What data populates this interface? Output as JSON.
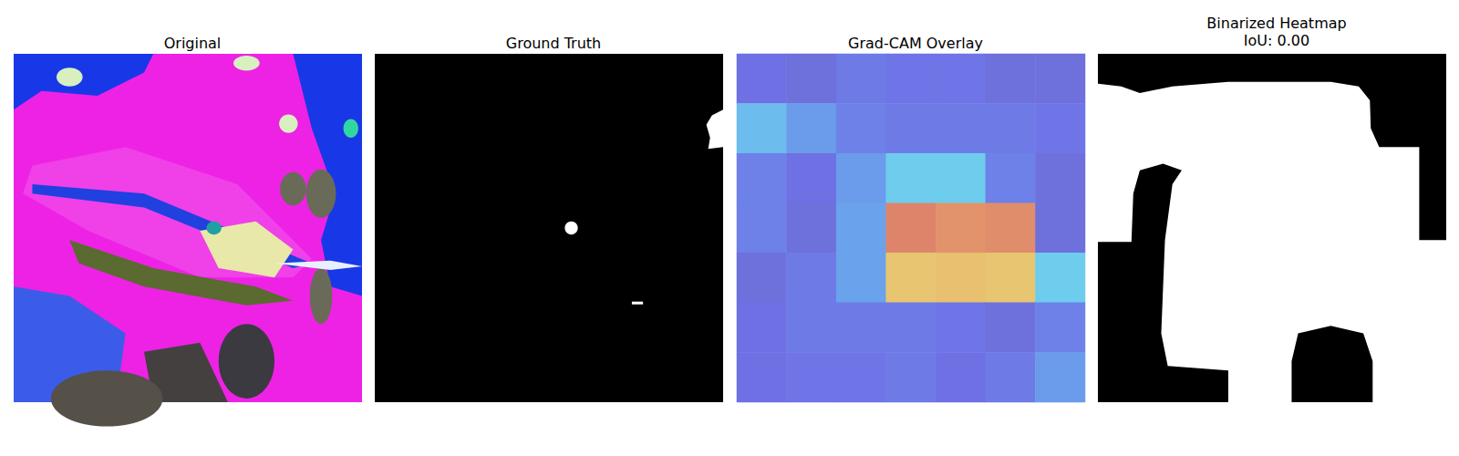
{
  "chart_data": [
    {
      "type": "image",
      "title": "Original",
      "tick_labels": false
    },
    {
      "type": "mask",
      "title": "Ground Truth",
      "tick_labels": false
    },
    {
      "type": "heatmap",
      "title": "Grad-CAM Overlay",
      "tick_labels": false,
      "range": [
        0,
        1
      ],
      "cells": [
        [
          0.15,
          0.12,
          0.2,
          0.18,
          0.18,
          0.12,
          0.12
        ],
        [
          0.4,
          0.3,
          0.22,
          0.2,
          0.2,
          0.2,
          0.18
        ],
        [
          0.22,
          0.15,
          0.3,
          0.45,
          0.45,
          0.22,
          0.12
        ],
        [
          0.22,
          0.12,
          0.32,
          0.95,
          0.9,
          0.92,
          0.12
        ],
        [
          0.12,
          0.2,
          0.32,
          0.7,
          0.72,
          0.7,
          0.45
        ],
        [
          0.15,
          0.2,
          0.2,
          0.2,
          0.18,
          0.12,
          0.22
        ],
        [
          0.15,
          0.18,
          0.18,
          0.2,
          0.15,
          0.2,
          0.3
        ]
      ]
    },
    {
      "type": "mask",
      "title": "Binarized Heatmap",
      "subtitle": "IoU: 0.00",
      "tick_labels": false
    }
  ]
}
